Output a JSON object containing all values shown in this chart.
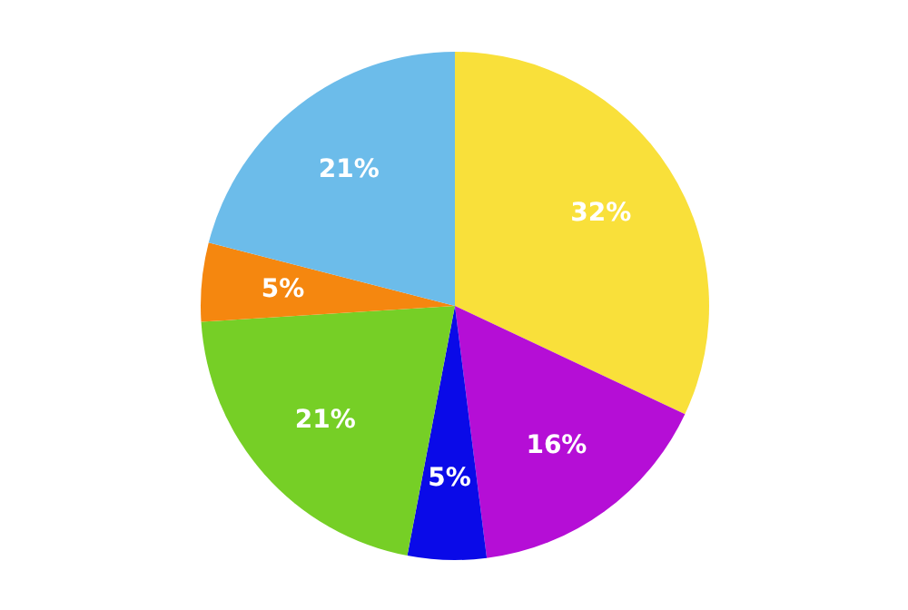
{
  "chart_data": {
    "type": "pie",
    "categories": [
      null,
      null,
      null,
      null,
      null,
      null
    ],
    "values": [
      32,
      16,
      5,
      21,
      5,
      21
    ],
    "value_labels": [
      "32%",
      "16%",
      "5%",
      "21%",
      "5%",
      "21%"
    ],
    "colors": [
      "#f9e03a",
      "#b50ed6",
      "#0a0ae8",
      "#76cf26",
      "#f5870f",
      "#6cbcea"
    ]
  }
}
